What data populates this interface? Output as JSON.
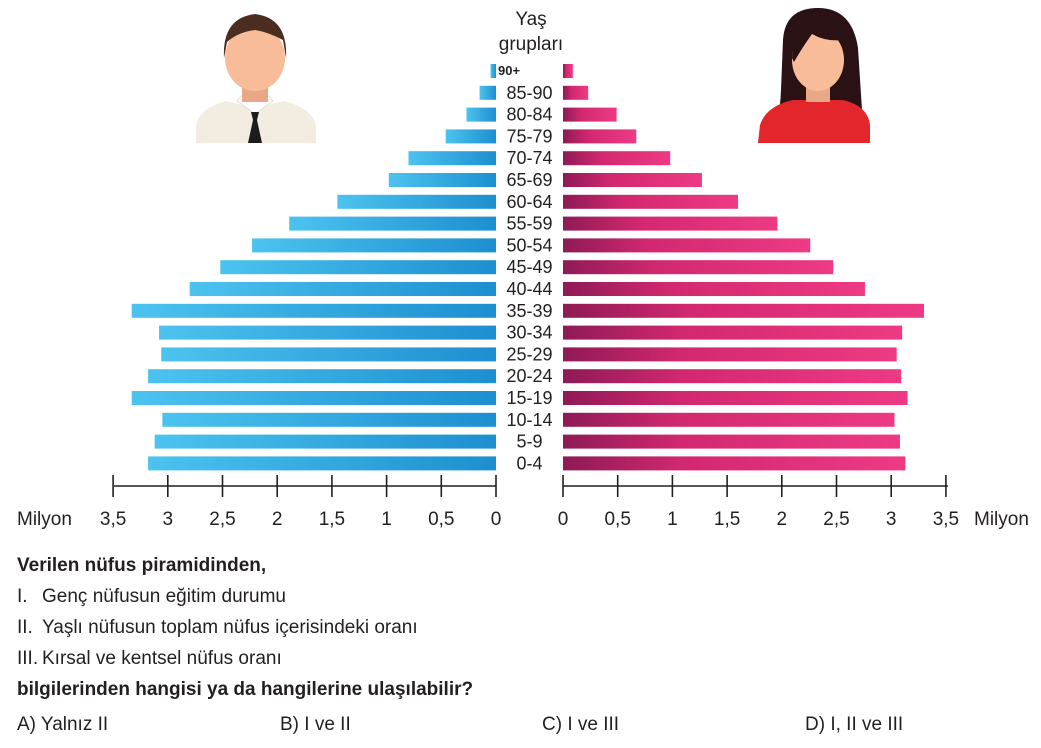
{
  "chart_data": {
    "type": "bar",
    "subtype": "population-pyramid",
    "title": "Yaş grupları",
    "unit": "Milyon",
    "categories": [
      "90+",
      "85-90",
      "80-84",
      "75-79",
      "70-74",
      "65-69",
      "60-64",
      "55-59",
      "50-54",
      "45-49",
      "40-44",
      "35-39",
      "30-34",
      "25-29",
      "20-24",
      "15-19",
      "10-14",
      "5-9",
      "0-4"
    ],
    "series": [
      {
        "name": "",
        "side": "left",
        "color": "#29a9e1",
        "values": [
          0.05,
          0.15,
          0.27,
          0.46,
          0.8,
          0.98,
          1.45,
          1.89,
          2.23,
          2.52,
          2.8,
          3.33,
          3.08,
          3.06,
          3.18,
          3.33,
          3.05,
          3.12,
          3.18
        ]
      },
      {
        "name": "",
        "side": "right",
        "color": "#e8317a",
        "values": [
          0.09,
          0.23,
          0.49,
          0.67,
          0.98,
          1.27,
          1.6,
          1.96,
          2.26,
          2.47,
          2.76,
          3.3,
          3.1,
          3.05,
          3.09,
          3.15,
          3.03,
          3.08,
          3.13
        ]
      }
    ],
    "xlim": [
      0,
      3.5
    ],
    "ticks": [
      "0",
      "0,5",
      "1",
      "1,5",
      "2",
      "2,5",
      "3",
      "3,5"
    ],
    "left_axis_label": "Milyon",
    "right_axis_label": "Milyon",
    "grid": false,
    "legend": "none"
  },
  "question": {
    "intro": "Verilen nüfus piramidinden,",
    "items": [
      {
        "num": "I.",
        "text": "Genç nüfusun eğitim durumu"
      },
      {
        "num": "II.",
        "text": "Yaşlı nüfusun toplam nüfus içerisindeki oranı"
      },
      {
        "num": "III.",
        "text": "Kırsal ve kentsel nüfus oranı"
      }
    ],
    "prompt": "bilgilerinden hangisi ya da hangilerine ulaşılabilir?",
    "options": [
      "A) Yalnız II",
      "B) I ve II",
      "C) I ve III",
      "D) I, II ve III"
    ]
  },
  "icons": {
    "left": "man-avatar-icon",
    "right": "woman-avatar-icon"
  }
}
